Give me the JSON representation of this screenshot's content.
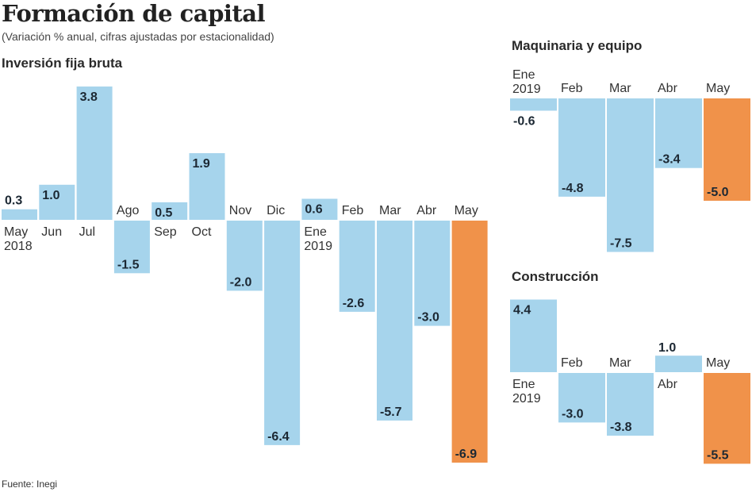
{
  "header": {
    "title": "Formación de capital",
    "subtitle": "(Variación % anual, cifras ajustadas por estacionalidad)",
    "source": "Fuente: Inegi"
  },
  "colors": {
    "bar": "#a6d4ec",
    "highlight": "#f0924a",
    "label": "#1c2833",
    "text": "#333333"
  },
  "chart_data": [
    {
      "type": "bar",
      "title": "Inversión fija bruta",
      "xlabel": "",
      "ylabel": "Variación % anual",
      "categories": [
        "May 2018",
        "Jun",
        "Jul",
        "Ago",
        "Sep",
        "Oct",
        "Nov",
        "Dic",
        "Ene 2019",
        "Feb",
        "Mar",
        "Abr",
        "May"
      ],
      "values": [
        0.3,
        1.0,
        3.8,
        -1.5,
        0.5,
        1.9,
        -2.0,
        -6.4,
        0.6,
        -2.6,
        -5.7,
        -3.0,
        -6.9
      ],
      "value_labels": [
        "0.3",
        "1.0",
        "3.8",
        "-1.5",
        "0.5",
        "1.9",
        "-2.0",
        "-6.4",
        "0.6",
        "-2.6",
        "-5.7",
        "-3.0",
        "-6.9"
      ],
      "highlight_index": 12,
      "grid": false,
      "legend": "none"
    },
    {
      "type": "bar",
      "title": "Maquinaria y equipo",
      "xlabel": "",
      "ylabel": "Variación % anual",
      "categories": [
        "Ene 2019",
        "Feb",
        "Mar",
        "Abr",
        "May"
      ],
      "values": [
        -0.6,
        -4.8,
        -7.5,
        -3.4,
        -5.0
      ],
      "value_labels": [
        "-0.6",
        "-4.8",
        "-7.5",
        "-3.4",
        "-5.0"
      ],
      "highlight_index": 4,
      "grid": false,
      "legend": "none"
    },
    {
      "type": "bar",
      "title": "Construcción",
      "xlabel": "",
      "ylabel": "Variación % anual",
      "categories": [
        "Ene 2019",
        "Feb",
        "Mar",
        "Abr",
        "May"
      ],
      "values": [
        4.4,
        -3.0,
        -3.8,
        1.0,
        -5.5
      ],
      "value_labels": [
        "4.4",
        "-3.0",
        "-3.8",
        "1.0",
        "-5.5"
      ],
      "highlight_index": 4,
      "grid": false,
      "legend": "none"
    }
  ]
}
